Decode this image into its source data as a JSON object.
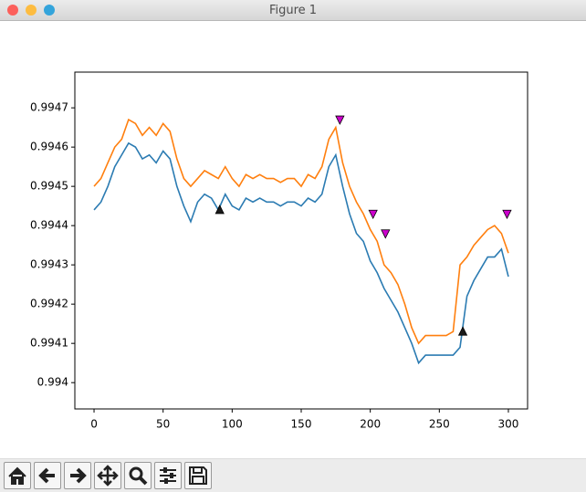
{
  "window": {
    "title": "Figure 1"
  },
  "chart_data": {
    "type": "line",
    "x": [
      0,
      5,
      10,
      15,
      20,
      25,
      30,
      35,
      40,
      45,
      50,
      55,
      60,
      65,
      70,
      75,
      80,
      85,
      90,
      95,
      100,
      105,
      110,
      115,
      120,
      125,
      130,
      135,
      140,
      145,
      150,
      155,
      160,
      165,
      170,
      175,
      180,
      185,
      190,
      195,
      200,
      205,
      210,
      215,
      220,
      225,
      230,
      235,
      240,
      245,
      250,
      255,
      260,
      265,
      270,
      275,
      280,
      285,
      290,
      295,
      300
    ],
    "series": [
      {
        "color": "#2b7bb2",
        "values": [
          0.99444,
          0.99446,
          0.9945,
          0.99455,
          0.99458,
          0.99461,
          0.9946,
          0.99457,
          0.99458,
          0.99456,
          0.99459,
          0.99457,
          0.9945,
          0.99445,
          0.99441,
          0.99446,
          0.99448,
          0.99447,
          0.99444,
          0.99448,
          0.99445,
          0.99444,
          0.99447,
          0.99446,
          0.99447,
          0.99446,
          0.99446,
          0.99445,
          0.99446,
          0.99446,
          0.99445,
          0.99447,
          0.99446,
          0.99448,
          0.99455,
          0.99458,
          0.9945,
          0.99443,
          0.99438,
          0.99436,
          0.99431,
          0.99428,
          0.99424,
          0.99421,
          0.99418,
          0.99414,
          0.9941,
          0.99405,
          0.99407,
          0.99407,
          0.99407,
          0.99407,
          0.99407,
          0.99409,
          0.99422,
          0.99426,
          0.99429,
          0.99432,
          0.99432,
          0.99434,
          0.99427
        ]
      },
      {
        "color": "#ff7f0e",
        "values": [
          0.9945,
          0.99452,
          0.99456,
          0.9946,
          0.99462,
          0.99467,
          0.99466,
          0.99463,
          0.99465,
          0.99463,
          0.99466,
          0.99464,
          0.99457,
          0.99452,
          0.9945,
          0.99452,
          0.99454,
          0.99453,
          0.99452,
          0.99455,
          0.99452,
          0.9945,
          0.99453,
          0.99452,
          0.99453,
          0.99452,
          0.99452,
          0.99451,
          0.99452,
          0.99452,
          0.9945,
          0.99453,
          0.99452,
          0.99455,
          0.99462,
          0.99465,
          0.99456,
          0.9945,
          0.99446,
          0.99443,
          0.99439,
          0.99436,
          0.9943,
          0.99428,
          0.99425,
          0.9942,
          0.99414,
          0.9941,
          0.99412,
          0.99412,
          0.99412,
          0.99412,
          0.99413,
          0.9943,
          0.99432,
          0.99435,
          0.99437,
          0.99439,
          0.9944,
          0.99438,
          0.99433
        ]
      }
    ],
    "markers": [
      {
        "marker": "up",
        "color": "#1a1a1a",
        "x": [
          91,
          267
        ],
        "values": [
          0.99444,
          0.99413
        ]
      },
      {
        "marker": "down",
        "color": "#cc00cc",
        "x": [
          178,
          202,
          211,
          299
        ],
        "values": [
          0.99467,
          0.99443,
          0.99438,
          0.99443
        ]
      }
    ],
    "xlim": [
      -13.9,
      313.9
    ],
    "xticks": [
      0,
      50,
      100,
      150,
      200,
      250,
      300
    ],
    "ylim": [
      0.993933,
      0.994791
    ],
    "yticks": [
      0.994,
      0.9941,
      0.9942,
      0.9943,
      0.9944,
      0.9945,
      0.9946,
      0.9947
    ]
  }
}
